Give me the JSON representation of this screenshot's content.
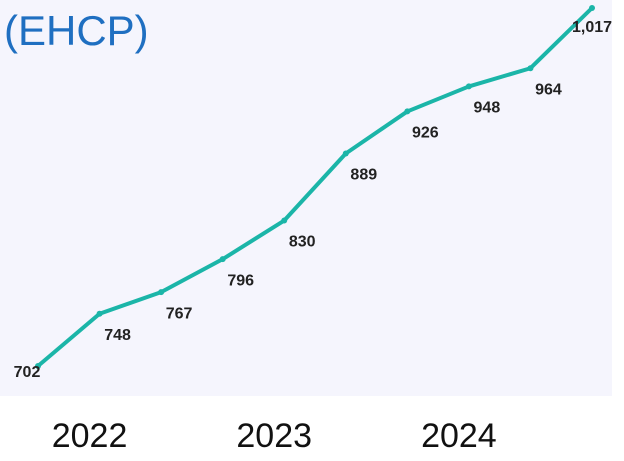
{
  "chart_data": {
    "type": "line",
    "title": "(EHCP)",
    "categories": [
      null,
      "2022",
      null,
      null,
      "2023",
      null,
      null,
      "2024",
      null,
      null
    ],
    "values": [
      702,
      748,
      767,
      796,
      830,
      889,
      926,
      948,
      964,
      1017
    ],
    "value_labels": [
      "702",
      "748",
      "767",
      "796",
      "830",
      "889",
      "926",
      "948",
      "964",
      "1,017"
    ],
    "color": "#1bb5a8"
  }
}
